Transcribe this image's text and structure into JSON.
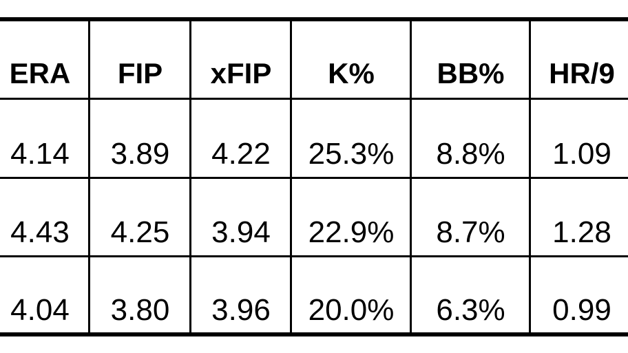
{
  "table": {
    "header": [
      "ERA",
      "FIP",
      "xFIP",
      "K%",
      "BB%",
      "HR/9"
    ],
    "rows": [
      [
        "4.14",
        "3.89",
        "4.22",
        "25.3%",
        "8.8%",
        "1.09"
      ],
      [
        "4.43",
        "4.25",
        "3.94",
        "22.9%",
        "8.7%",
        "1.28"
      ],
      [
        "4.04",
        "3.80",
        "3.96",
        "20.0%",
        "6.3%",
        "0.99"
      ]
    ]
  }
}
